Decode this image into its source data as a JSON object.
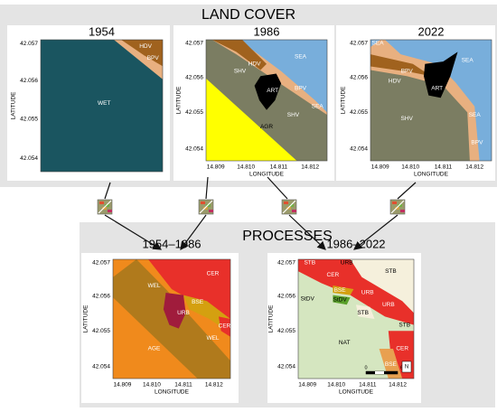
{
  "land_cover": {
    "title": "LAND COVER",
    "panels": [
      {
        "year": "1954",
        "regions": [
          "HDV",
          "BPV",
          "WET"
        ]
      },
      {
        "year": "1986",
        "regions": [
          "SEA",
          "HDV",
          "SHV",
          "ART",
          "BPV",
          "SEA",
          "SHV",
          "AGR"
        ]
      },
      {
        "year": "2022",
        "regions": [
          "SEA",
          "SEA",
          "BPV",
          "HDV",
          "ART",
          "SHV",
          "SEA",
          "BPV"
        ]
      }
    ]
  },
  "processes": {
    "title": "PROCESSES",
    "panels": [
      {
        "period": "1954–1986",
        "regions": [
          "CER",
          "WEL",
          "BSE",
          "URB",
          "CER",
          "AGE",
          "WEL"
        ]
      },
      {
        "period": "1986–2022",
        "regions": [
          "STB",
          "URB",
          "CER",
          "STB",
          "StDV",
          "BSE",
          "StDV",
          "URB",
          "URB",
          "STB",
          "STB",
          "NAT",
          "CER",
          "BSE"
        ]
      }
    ]
  },
  "axes": {
    "y_label": "LATITUDE",
    "x_label": "LONGITUDE",
    "yticks": [
      "42.057",
      "42.056",
      "42.055",
      "42.054"
    ],
    "xticks": [
      "14.809",
      "14.810",
      "14.811",
      "14.812"
    ]
  },
  "scale_bar": {
    "labels": [
      "0",
      "60 m"
    ]
  },
  "north": "N"
}
